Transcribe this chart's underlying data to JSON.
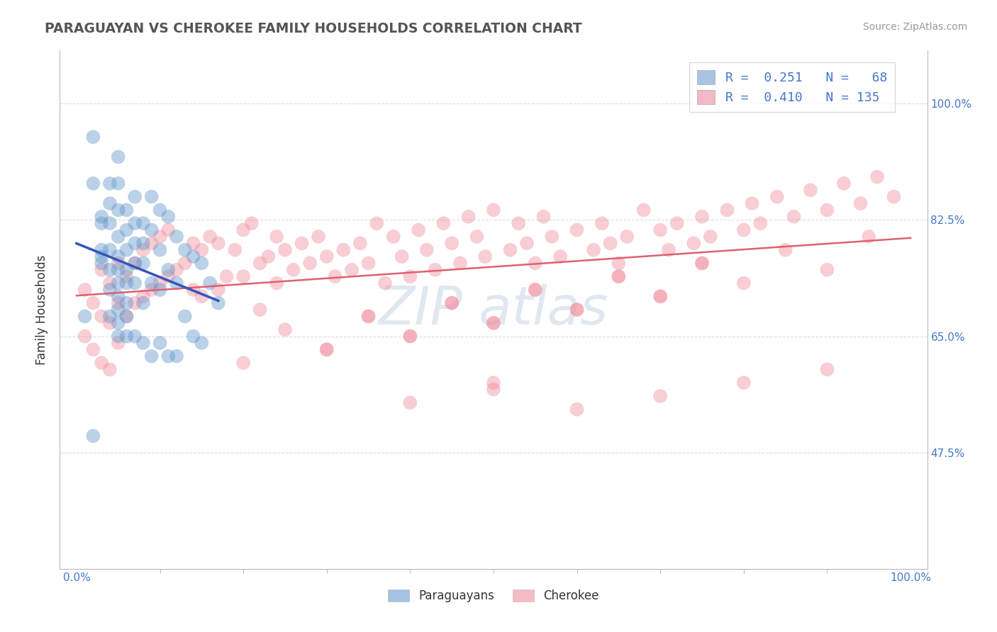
{
  "title": "PARAGUAYAN VS CHEROKEE FAMILY HOUSEHOLDS CORRELATION CHART",
  "source": "Source: ZipAtlas.com",
  "ylabel": "Family Households",
  "ytick_labels": [
    "100.0%",
    "82.5%",
    "65.0%",
    "47.5%"
  ],
  "ytick_values": [
    1.0,
    0.825,
    0.65,
    0.475
  ],
  "xtick_labels_bottom": [
    "0.0%",
    "100.0%"
  ],
  "xlim": [
    -0.02,
    1.02
  ],
  "ylim": [
    0.3,
    1.08
  ],
  "legend_line1": "R =  0.251   N =   68",
  "legend_line2": "R =  0.410   N = 135",
  "legend_color1": "#a8c4e0",
  "legend_color2": "#f4b8c4",
  "paraguayan_color": "#6699cc",
  "cherokee_color": "#f090a0",
  "trendline_paraguayan_color": "#3355bb",
  "trendline_cherokee_color": "#e06070",
  "watermark_text": "ZIP atlas",
  "watermark_color": "#ccd8e8",
  "background_color": "#ffffff",
  "grid_color": "#dddddd",
  "title_color": "#555555",
  "source_color": "#999999",
  "tick_label_color": "#4477cc",
  "ylabel_color": "#333333",
  "bottom_legend_labels": [
    "Paraguayans",
    "Cherokee"
  ],
  "paraguayan_x": [
    0.01,
    0.02,
    0.02,
    0.02,
    0.03,
    0.03,
    0.03,
    0.03,
    0.03,
    0.04,
    0.04,
    0.04,
    0.04,
    0.04,
    0.04,
    0.04,
    0.05,
    0.05,
    0.05,
    0.05,
    0.05,
    0.05,
    0.05,
    0.05,
    0.05,
    0.05,
    0.05,
    0.06,
    0.06,
    0.06,
    0.06,
    0.06,
    0.06,
    0.06,
    0.06,
    0.07,
    0.07,
    0.07,
    0.07,
    0.07,
    0.07,
    0.08,
    0.08,
    0.08,
    0.08,
    0.08,
    0.09,
    0.09,
    0.09,
    0.09,
    0.1,
    0.1,
    0.1,
    0.1,
    0.11,
    0.11,
    0.11,
    0.12,
    0.12,
    0.12,
    0.13,
    0.13,
    0.14,
    0.14,
    0.15,
    0.15,
    0.16,
    0.17
  ],
  "paraguayan_y": [
    0.68,
    0.95,
    0.88,
    0.5,
    0.83,
    0.82,
    0.78,
    0.77,
    0.76,
    0.88,
    0.85,
    0.82,
    0.78,
    0.75,
    0.72,
    0.68,
    0.92,
    0.88,
    0.84,
    0.8,
    0.77,
    0.75,
    0.73,
    0.71,
    0.69,
    0.67,
    0.65,
    0.84,
    0.81,
    0.78,
    0.75,
    0.73,
    0.7,
    0.68,
    0.65,
    0.86,
    0.82,
    0.79,
    0.76,
    0.73,
    0.65,
    0.82,
    0.79,
    0.76,
    0.7,
    0.64,
    0.86,
    0.81,
    0.73,
    0.62,
    0.84,
    0.78,
    0.72,
    0.64,
    0.83,
    0.75,
    0.62,
    0.8,
    0.73,
    0.62,
    0.78,
    0.68,
    0.77,
    0.65,
    0.76,
    0.64,
    0.73,
    0.7
  ],
  "cherokee_x": [
    0.01,
    0.01,
    0.02,
    0.02,
    0.03,
    0.03,
    0.03,
    0.04,
    0.04,
    0.04,
    0.05,
    0.05,
    0.05,
    0.06,
    0.06,
    0.07,
    0.07,
    0.08,
    0.08,
    0.09,
    0.09,
    0.1,
    0.1,
    0.11,
    0.11,
    0.12,
    0.13,
    0.14,
    0.14,
    0.15,
    0.15,
    0.16,
    0.17,
    0.17,
    0.18,
    0.19,
    0.2,
    0.2,
    0.21,
    0.22,
    0.22,
    0.23,
    0.24,
    0.24,
    0.25,
    0.26,
    0.27,
    0.28,
    0.29,
    0.3,
    0.31,
    0.32,
    0.33,
    0.34,
    0.35,
    0.36,
    0.37,
    0.38,
    0.39,
    0.4,
    0.41,
    0.42,
    0.43,
    0.44,
    0.45,
    0.46,
    0.47,
    0.48,
    0.49,
    0.5,
    0.52,
    0.53,
    0.54,
    0.55,
    0.56,
    0.57,
    0.58,
    0.6,
    0.62,
    0.63,
    0.64,
    0.65,
    0.66,
    0.68,
    0.7,
    0.71,
    0.72,
    0.74,
    0.75,
    0.76,
    0.78,
    0.8,
    0.81,
    0.82,
    0.84,
    0.86,
    0.88,
    0.9,
    0.92,
    0.94,
    0.96,
    0.98,
    0.3,
    0.35,
    0.4,
    0.45,
    0.5,
    0.55,
    0.6,
    0.65,
    0.7,
    0.75,
    0.8,
    0.85,
    0.9,
    0.95,
    0.2,
    0.25,
    0.3,
    0.35,
    0.4,
    0.45,
    0.5,
    0.55,
    0.6,
    0.65,
    0.7,
    0.75,
    0.5,
    0.6,
    0.7,
    0.8,
    0.9,
    0.4,
    0.5
  ],
  "cherokee_y": [
    0.72,
    0.65,
    0.7,
    0.63,
    0.75,
    0.68,
    0.61,
    0.73,
    0.67,
    0.6,
    0.76,
    0.7,
    0.64,
    0.74,
    0.68,
    0.76,
    0.7,
    0.78,
    0.71,
    0.79,
    0.72,
    0.8,
    0.73,
    0.81,
    0.74,
    0.75,
    0.76,
    0.79,
    0.72,
    0.78,
    0.71,
    0.8,
    0.79,
    0.72,
    0.74,
    0.78,
    0.81,
    0.74,
    0.82,
    0.76,
    0.69,
    0.77,
    0.8,
    0.73,
    0.78,
    0.75,
    0.79,
    0.76,
    0.8,
    0.77,
    0.74,
    0.78,
    0.75,
    0.79,
    0.76,
    0.82,
    0.73,
    0.8,
    0.77,
    0.74,
    0.81,
    0.78,
    0.75,
    0.82,
    0.79,
    0.76,
    0.83,
    0.8,
    0.77,
    0.84,
    0.78,
    0.82,
    0.79,
    0.76,
    0.83,
    0.8,
    0.77,
    0.81,
    0.78,
    0.82,
    0.79,
    0.76,
    0.8,
    0.84,
    0.81,
    0.78,
    0.82,
    0.79,
    0.83,
    0.8,
    0.84,
    0.81,
    0.85,
    0.82,
    0.86,
    0.83,
    0.87,
    0.84,
    0.88,
    0.85,
    0.89,
    0.86,
    0.63,
    0.68,
    0.65,
    0.7,
    0.67,
    0.72,
    0.69,
    0.74,
    0.71,
    0.76,
    0.73,
    0.78,
    0.75,
    0.8,
    0.61,
    0.66,
    0.63,
    0.68,
    0.65,
    0.7,
    0.67,
    0.72,
    0.69,
    0.74,
    0.71,
    0.76,
    0.57,
    0.54,
    0.56,
    0.58,
    0.6,
    0.55,
    0.58
  ]
}
